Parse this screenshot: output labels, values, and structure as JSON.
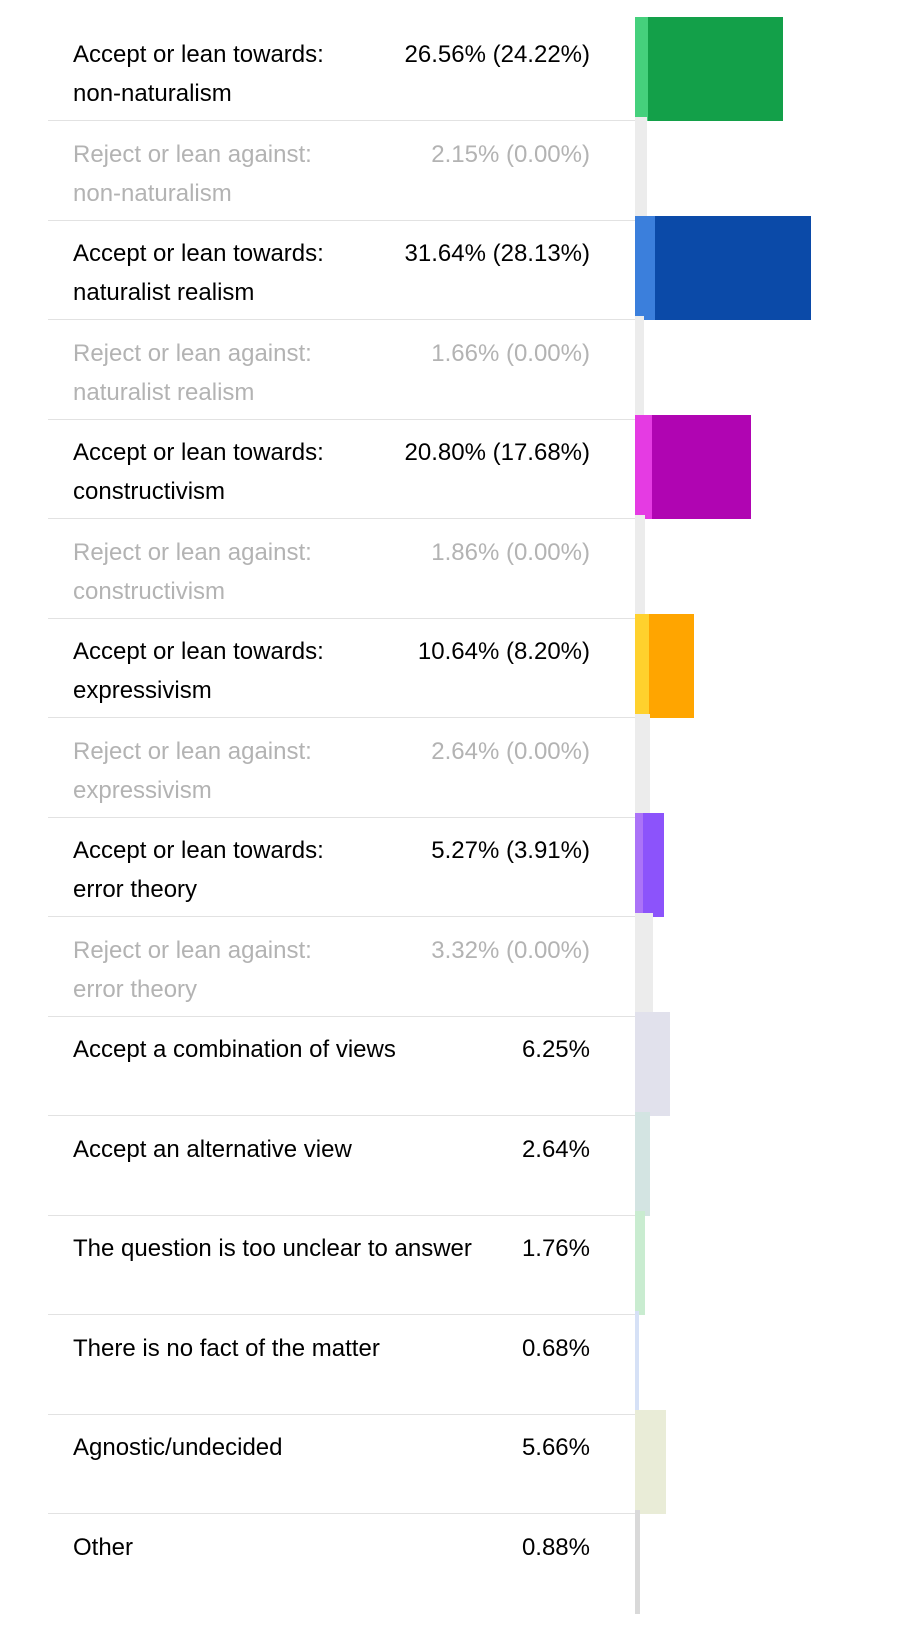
{
  "chart_data": {
    "type": "bar",
    "orientation": "horizontal",
    "value_unit": "%",
    "xlim": [
      0,
      31.64
    ],
    "rows": [
      {
        "label_line1": "Accept or lean towards:",
        "label_line2": "non-naturalism",
        "value_text": "26.56% (24.22%)",
        "value": 26.56,
        "strong": 24.22,
        "kind": "accept",
        "light_color": "#45d07c",
        "dark_color": "#13a049"
      },
      {
        "label_line1": "Reject or lean against:",
        "label_line2": "non-naturalism",
        "value_text": "2.15% (0.00%)",
        "value": 2.15,
        "strong": 0.0,
        "kind": "reject",
        "light_color": "#ececec",
        "dark_color": "#ececec"
      },
      {
        "label_line1": "Accept or lean towards:",
        "label_line2": "naturalist realism",
        "value_text": "31.64% (28.13%)",
        "value": 31.64,
        "strong": 28.13,
        "kind": "accept",
        "light_color": "#3b7fdc",
        "dark_color": "#0b4aa8"
      },
      {
        "label_line1": "Reject or lean against:",
        "label_line2": "naturalist realism",
        "value_text": "1.66% (0.00%)",
        "value": 1.66,
        "strong": 0.0,
        "kind": "reject",
        "light_color": "#ececec",
        "dark_color": "#ececec"
      },
      {
        "label_line1": "Accept or lean towards:",
        "label_line2": "constructivism",
        "value_text": "20.80% (17.68%)",
        "value": 20.8,
        "strong": 17.68,
        "kind": "accept",
        "light_color": "#e53be3",
        "dark_color": "#b005b2"
      },
      {
        "label_line1": "Reject or lean against:",
        "label_line2": "constructivism",
        "value_text": "1.86% (0.00%)",
        "value": 1.86,
        "strong": 0.0,
        "kind": "reject",
        "light_color": "#ececec",
        "dark_color": "#ececec"
      },
      {
        "label_line1": "Accept or lean towards:",
        "label_line2": "expressivism",
        "value_text": "10.64% (8.20%)",
        "value": 10.64,
        "strong": 8.2,
        "kind": "accept",
        "light_color": "#ffd12d",
        "dark_color": "#ffa500"
      },
      {
        "label_line1": "Reject or lean against:",
        "label_line2": "expressivism",
        "value_text": "2.64% (0.00%)",
        "value": 2.64,
        "strong": 0.0,
        "kind": "reject",
        "light_color": "#ececec",
        "dark_color": "#ececec"
      },
      {
        "label_line1": "Accept or lean towards:",
        "label_line2": "error theory",
        "value_text": "5.27% (3.91%)",
        "value": 5.27,
        "strong": 3.91,
        "kind": "accept",
        "light_color": "#ab73f8",
        "dark_color": "#8c53fb"
      },
      {
        "label_line1": "Reject or lean against:",
        "label_line2": "error theory",
        "value_text": "3.32% (0.00%)",
        "value": 3.32,
        "strong": 0.0,
        "kind": "reject",
        "light_color": "#ececec",
        "dark_color": "#ececec"
      },
      {
        "label_line1": "Accept a combination of views",
        "label_line2": "",
        "value_text": "6.25%",
        "value": 6.25,
        "strong": 0.0,
        "kind": "other",
        "light_color": "#e1e1ec",
        "dark_color": "#e1e1ec"
      },
      {
        "label_line1": "Accept an alternative view",
        "label_line2": "",
        "value_text": "2.64%",
        "value": 2.64,
        "strong": 0.0,
        "kind": "other",
        "light_color": "#d3e4e2",
        "dark_color": "#d3e4e2"
      },
      {
        "label_line1": "The question is too unclear to answer",
        "label_line2": "",
        "value_text": "1.76%",
        "value": 1.76,
        "strong": 0.0,
        "kind": "other",
        "light_color": "#c9ecd0",
        "dark_color": "#c9ecd0"
      },
      {
        "label_line1": "There is no fact of the matter",
        "label_line2": "",
        "value_text": "0.68%",
        "value": 0.68,
        "strong": 0.0,
        "kind": "other",
        "light_color": "#d6e1f6",
        "dark_color": "#d6e1f6"
      },
      {
        "label_line1": "Agnostic/undecided",
        "label_line2": "",
        "value_text": "5.66%",
        "value": 5.66,
        "strong": 0.0,
        "kind": "other",
        "light_color": "#e9ecd7",
        "dark_color": "#e9ecd7"
      },
      {
        "label_line1": "Other",
        "label_line2": "",
        "value_text": "0.88%",
        "value": 0.88,
        "strong": 0.0,
        "kind": "other",
        "light_color": "#d9d9d9",
        "dark_color": "#d9d9d9"
      }
    ]
  }
}
